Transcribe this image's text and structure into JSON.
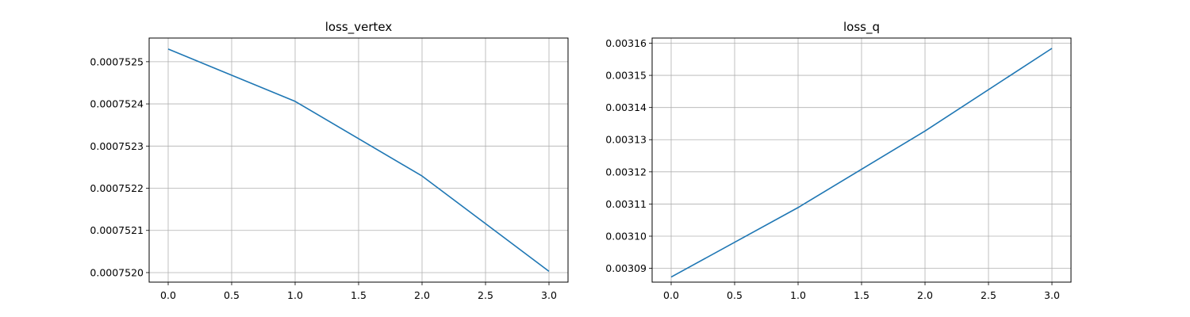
{
  "chart_data": [
    {
      "type": "line",
      "title": "loss_vertex",
      "xlabel": "",
      "ylabel": "",
      "x": [
        0,
        1,
        2,
        3
      ],
      "series": [
        {
          "values": [
            0.00075253,
            0.000752406,
            0.000752229,
            0.000752003
          ],
          "color": "#1f77b4"
        }
      ],
      "xlim": [
        -0.15,
        3.15
      ],
      "ylim": [
        0.0007519774,
        0.0007525561
      ],
      "xticks": [
        0.0,
        0.5,
        1.0,
        1.5,
        2.0,
        2.5,
        3.0
      ],
      "xtick_labels": [
        "0.0",
        "0.5",
        "1.0",
        "1.5",
        "2.0",
        "2.5",
        "3.0"
      ],
      "yticks": [
        0.000752,
        0.0007521,
        0.0007522,
        0.0007523,
        0.0007524,
        0.0007525
      ],
      "ytick_labels": [
        "0.0007520",
        "0.0007521",
        "0.0007522",
        "0.0007523",
        "0.0007524",
        "0.0007525"
      ],
      "grid": true,
      "legend": null
    },
    {
      "type": "line",
      "title": "loss_q",
      "xlabel": "",
      "ylabel": "",
      "x": [
        0,
        1,
        2,
        3
      ],
      "series": [
        {
          "values": [
            0.0030873,
            0.0031089,
            0.0031327,
            0.0031584
          ],
          "color": "#1f77b4"
        }
      ],
      "xlim": [
        -0.15,
        3.15
      ],
      "ylim": [
        0.00308571,
        0.0031616
      ],
      "xticks": [
        0.0,
        0.5,
        1.0,
        1.5,
        2.0,
        2.5,
        3.0
      ],
      "xtick_labels": [
        "0.0",
        "0.5",
        "1.0",
        "1.5",
        "2.0",
        "2.5",
        "3.0"
      ],
      "yticks": [
        0.00309,
        0.0031,
        0.00311,
        0.00312,
        0.00313,
        0.00314,
        0.00315,
        0.00316
      ],
      "ytick_labels": [
        "0.00309",
        "0.00310",
        "0.00311",
        "0.00312",
        "0.00313",
        "0.00314",
        "0.00315",
        "0.00316"
      ],
      "grid": true,
      "legend": null
    }
  ],
  "colors": {
    "line": "#1f77b4",
    "grid": "#b0b0b0",
    "axes": "#000000",
    "background": "#ffffff"
  }
}
